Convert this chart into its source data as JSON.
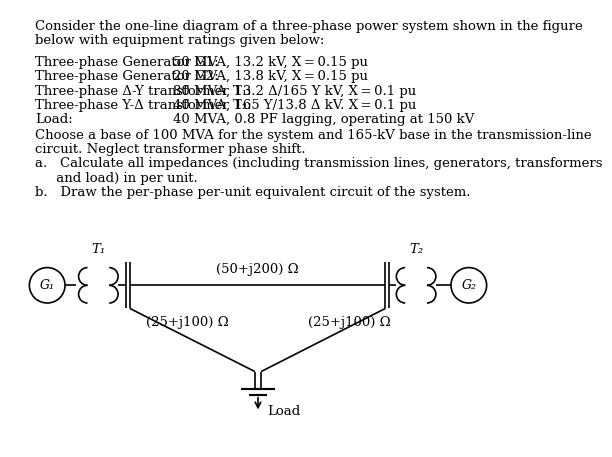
{
  "background_color": "#ffffff",
  "text_color": "#000000",
  "font_family": "DejaVu Serif",
  "font_size": 9.5,
  "title_lines": [
    "Consider the one-line diagram of a three-phase power system shown in the figure",
    "below with equipment ratings given below:"
  ],
  "spec_labels": [
    "Three-phase Generator G1:",
    "Three-phase Generator G2:",
    "Three-phase Δ-Y transformer T₁:",
    "Three-phase Y-Δ transformer T₂:",
    "Load:"
  ],
  "spec_values": [
    "50 MVA, 13.2 kV, X = 0.15 pu",
    "20 MVA, 13.8 kV, X = 0.15 pu",
    "80 MVA, 13.2 Δ/165 Y kV, X = 0.1 pu",
    "40 MVA, 165 Y/13.8 Δ kV. X = 0.1 pu",
    "40 MVA, 0.8 PF lagging, operating at 150 kV"
  ],
  "extra_lines": [
    "Choose a base of 100 MVA for the system and 165-kV base in the transmission-line",
    "circuit. Neglect transformer phase shift.",
    "a.   Calculate all impedances (including transmission lines, generators, transformers",
    "     and load) in per unit.",
    "b.   Draw the per-phase per-unit equivalent circuit of the system."
  ],
  "diag": {
    "G1_label": "G₁",
    "G2_label": "G₂",
    "T1_label": "T₁",
    "T2_label": "T₂",
    "line_label": "(50+j200) Ω",
    "left_branch_label": "(25+j100) Ω",
    "right_branch_label": "(25+j100) Ω",
    "load_label": "Load"
  }
}
